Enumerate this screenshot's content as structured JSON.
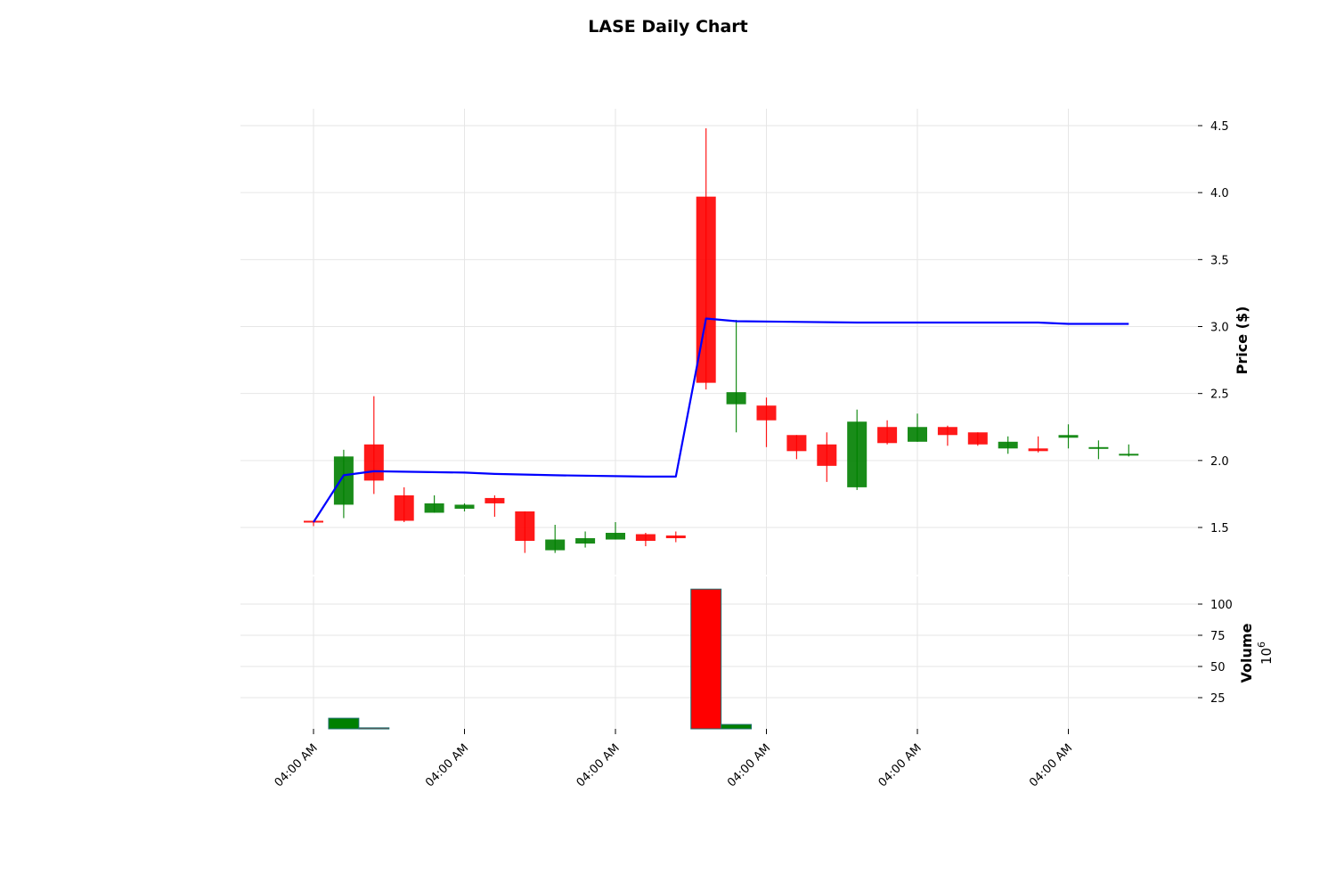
{
  "chart_data": {
    "type": "candlestick",
    "title": "LASE Daily Chart",
    "ylabel": "Price ($)",
    "volume_label": "Volume",
    "volume_scale_label": "10^6",
    "ylim": [
      1.16,
      4.63
    ],
    "volume_ylim": [
      0,
      112
    ],
    "yticks": [
      1.5,
      2.0,
      2.5,
      3.0,
      3.5,
      4.0,
      4.5
    ],
    "volume_yticks": [
      25,
      50,
      75,
      100
    ],
    "xtick_labels": [
      "04:00 AM",
      "04:00 AM",
      "04:00 AM",
      "04:00 AM",
      "04:00 AM",
      "04:00 AM"
    ],
    "xtick_index": [
      0,
      5,
      10,
      15,
      20,
      25
    ],
    "grid": true,
    "colors": {
      "up": "#008000",
      "down": "#ff0000",
      "line": "#0000ff",
      "grid": "#e6e6e6"
    },
    "candles": [
      {
        "o": 1.55,
        "h": 1.55,
        "l": 1.51,
        "c": 1.54
      },
      {
        "o": 1.67,
        "h": 2.08,
        "l": 1.57,
        "c": 2.03
      },
      {
        "o": 2.12,
        "h": 2.48,
        "l": 1.75,
        "c": 1.85
      },
      {
        "o": 1.74,
        "h": 1.8,
        "l": 1.54,
        "c": 1.55
      },
      {
        "o": 1.61,
        "h": 1.74,
        "l": 1.61,
        "c": 1.68
      },
      {
        "o": 1.64,
        "h": 1.68,
        "l": 1.62,
        "c": 1.67
      },
      {
        "o": 1.72,
        "h": 1.74,
        "l": 1.58,
        "c": 1.68
      },
      {
        "o": 1.62,
        "h": 1.62,
        "l": 1.31,
        "c": 1.4
      },
      {
        "o": 1.33,
        "h": 1.52,
        "l": 1.31,
        "c": 1.41
      },
      {
        "o": 1.38,
        "h": 1.47,
        "l": 1.35,
        "c": 1.42
      },
      {
        "o": 1.41,
        "h": 1.54,
        "l": 1.41,
        "c": 1.46
      },
      {
        "o": 1.45,
        "h": 1.46,
        "l": 1.36,
        "c": 1.4
      },
      {
        "o": 1.44,
        "h": 1.47,
        "l": 1.39,
        "c": 1.42
      },
      {
        "o": 3.97,
        "h": 4.48,
        "l": 2.53,
        "c": 2.58
      },
      {
        "o": 2.42,
        "h": 3.05,
        "l": 2.21,
        "c": 2.51
      },
      {
        "o": 2.41,
        "h": 2.47,
        "l": 2.1,
        "c": 2.3
      },
      {
        "o": 2.19,
        "h": 2.19,
        "l": 2.01,
        "c": 2.07
      },
      {
        "o": 2.12,
        "h": 2.21,
        "l": 1.84,
        "c": 1.96
      },
      {
        "o": 1.8,
        "h": 2.38,
        "l": 1.78,
        "c": 2.29
      },
      {
        "o": 2.25,
        "h": 2.3,
        "l": 2.12,
        "c": 2.13
      },
      {
        "o": 2.14,
        "h": 2.35,
        "l": 2.14,
        "c": 2.25
      },
      {
        "o": 2.25,
        "h": 2.26,
        "l": 2.11,
        "c": 2.19
      },
      {
        "o": 2.21,
        "h": 2.21,
        "l": 2.11,
        "c": 2.12
      },
      {
        "o": 2.09,
        "h": 2.18,
        "l": 2.05,
        "c": 2.14
      },
      {
        "o": 2.09,
        "h": 2.18,
        "l": 2.06,
        "c": 2.07
      },
      {
        "o": 2.17,
        "h": 2.27,
        "l": 2.09,
        "c": 2.19
      },
      {
        "o": 2.09,
        "h": 2.15,
        "l": 2.01,
        "c": 2.1
      },
      {
        "o": 2.04,
        "h": 2.12,
        "l": 2.03,
        "c": 2.05
      }
    ],
    "volume_bars": [
      {
        "i": 1,
        "v": 8.5,
        "dir": "up"
      },
      {
        "i": 2,
        "v": 0.8,
        "dir": "down"
      },
      {
        "i": 13,
        "v": 112,
        "dir": "down"
      },
      {
        "i": 14,
        "v": 3.5,
        "dir": "up"
      }
    ],
    "line_series": {
      "x": [
        0,
        1,
        2,
        5,
        6,
        8,
        11,
        12,
        13,
        14,
        18,
        24,
        25,
        27
      ],
      "values": [
        1.54,
        1.89,
        1.92,
        1.91,
        1.9,
        1.89,
        1.88,
        1.88,
        3.06,
        3.04,
        3.03,
        3.03,
        3.02,
        3.02
      ]
    }
  }
}
